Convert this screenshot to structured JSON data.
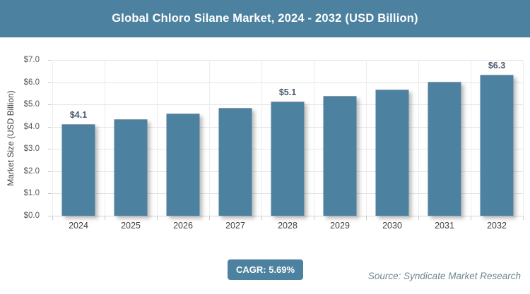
{
  "header": {
    "title": "Global Chloro Silane Market, 2024 - 2032 (USD Billion)"
  },
  "chart_data": {
    "type": "bar",
    "title": "Global Chloro Silane Market, 2024 - 2032 (USD Billion)",
    "categories": [
      "2024",
      "2025",
      "2026",
      "2027",
      "2028",
      "2029",
      "2030",
      "2031",
      "2032"
    ],
    "values": [
      4.1,
      4.3,
      4.55,
      4.8,
      5.1,
      5.35,
      5.65,
      6.0,
      6.3
    ],
    "data_labels": [
      "$4.1",
      "",
      "",
      "",
      "$5.1",
      "",
      "",
      "",
      "$6.3"
    ],
    "xlabel": "",
    "ylabel": "Market Size (USD Billion)",
    "ylim": [
      0,
      7
    ],
    "ytick_step": 1,
    "ytick_labels": [
      "$0.0",
      "$1.0",
      "$2.0",
      "$3.0",
      "$4.0",
      "$5.0",
      "$6.0",
      "$7.0"
    ],
    "grid": true,
    "legend": false,
    "bar_color": "#4d81a0"
  },
  "footer": {
    "cagr_label": "CAGR: 5.69%",
    "source": "Source: Syndicate Market Research"
  },
  "colors": {
    "accent_teal": "#4c82a0",
    "bar_fill": "#4d81a0",
    "data_label": "#4a5a6e",
    "gridline": "#e4e4e4",
    "tick_text": "#595959",
    "source_text": "#6f8791",
    "title_text": "#ffffff"
  }
}
